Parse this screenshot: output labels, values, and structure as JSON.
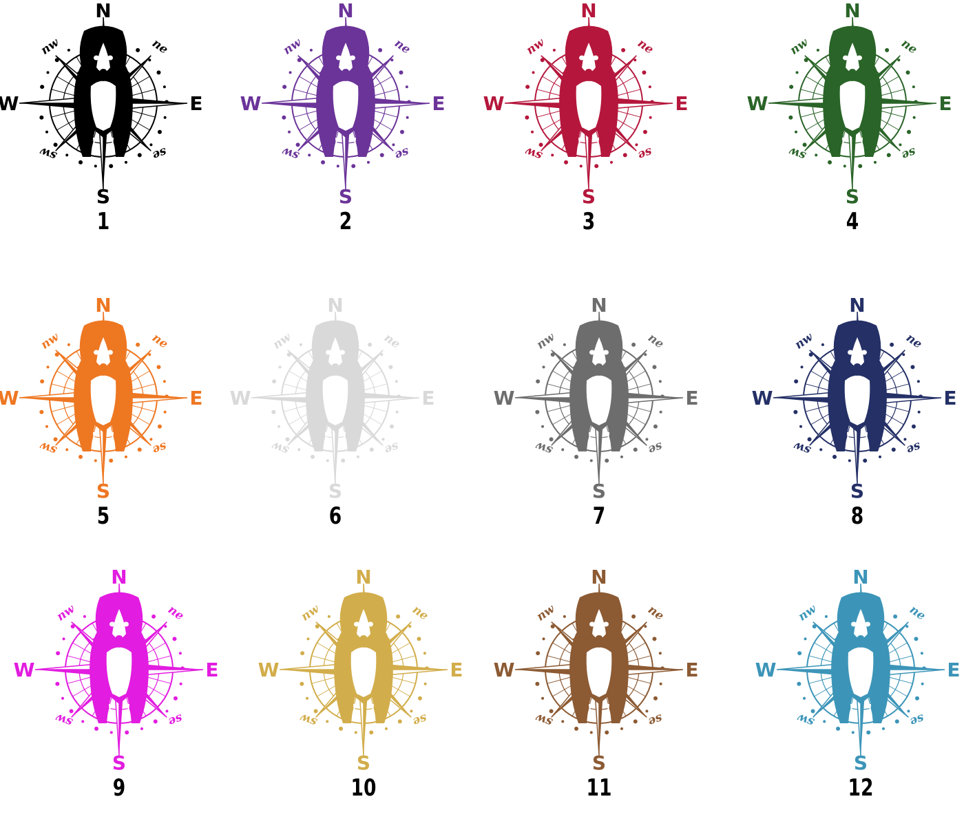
{
  "compass_labels": {
    "north": "N",
    "south": "S",
    "east": "E",
    "west": "W",
    "northeast": "ne",
    "northwest": "nw",
    "southeast": "se",
    "southwest": "sw"
  },
  "variants": [
    {
      "number": "1",
      "color": "#000000"
    },
    {
      "number": "2",
      "color": "#6b3499"
    },
    {
      "number": "3",
      "color": "#b5173c"
    },
    {
      "number": "4",
      "color": "#2a6428"
    },
    {
      "number": "5",
      "color": "#ee7722"
    },
    {
      "number": "6",
      "color": "#d9d9d9"
    },
    {
      "number": "7",
      "color": "#6d6d6d"
    },
    {
      "number": "8",
      "color": "#243066"
    },
    {
      "number": "9",
      "color": "#e21ce0"
    },
    {
      "number": "10",
      "color": "#d2ad4b"
    },
    {
      "number": "11",
      "color": "#8c5a33"
    },
    {
      "number": "12",
      "color": "#3c95b8"
    }
  ]
}
